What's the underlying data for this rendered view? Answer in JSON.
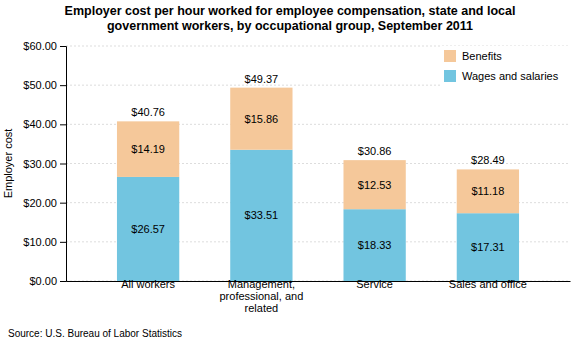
{
  "chart_data": {
    "type": "bar",
    "stacked": true,
    "title": "Employer cost per hour worked for employee compensation, state and local\ngovernment workers, by occupational group, September 2011",
    "categories": [
      "All workers",
      "Management,\nprofessional, and\nrelated",
      "Service",
      "Sales and office"
    ],
    "series": [
      {
        "name": "Wages and salaries",
        "color": "#72c5e0",
        "values": [
          26.57,
          33.51,
          18.33,
          17.31
        ],
        "value_labels": [
          "$26.57",
          "$33.51",
          "$18.33",
          "$17.31"
        ]
      },
      {
        "name": "Benefits",
        "color": "#f5c89a",
        "values": [
          14.19,
          15.86,
          12.53,
          11.18
        ],
        "value_labels": [
          "$14.19",
          "$15.86",
          "$12.53",
          "$11.18"
        ]
      }
    ],
    "totals": [
      40.76,
      49.37,
      30.86,
      28.49
    ],
    "total_labels": [
      "$40.76",
      "$49.37",
      "$30.86",
      "$28.49"
    ],
    "ylabel": "Employer cost",
    "ylim": [
      0,
      60
    ],
    "yticks": [
      {
        "value": 0,
        "label": "$0.00"
      },
      {
        "value": 10,
        "label": "$10.00"
      },
      {
        "value": 20,
        "label": "$20.00"
      },
      {
        "value": 30,
        "label": "$30.00"
      },
      {
        "value": 40,
        "label": "$40.00"
      },
      {
        "value": 50,
        "label": "$50.00"
      },
      {
        "value": 60,
        "label": "$60.00"
      }
    ],
    "grid": true,
    "legend": "upper right",
    "data_labels": true,
    "source": "Source: U.S. Bureau of Labor Statistics"
  }
}
